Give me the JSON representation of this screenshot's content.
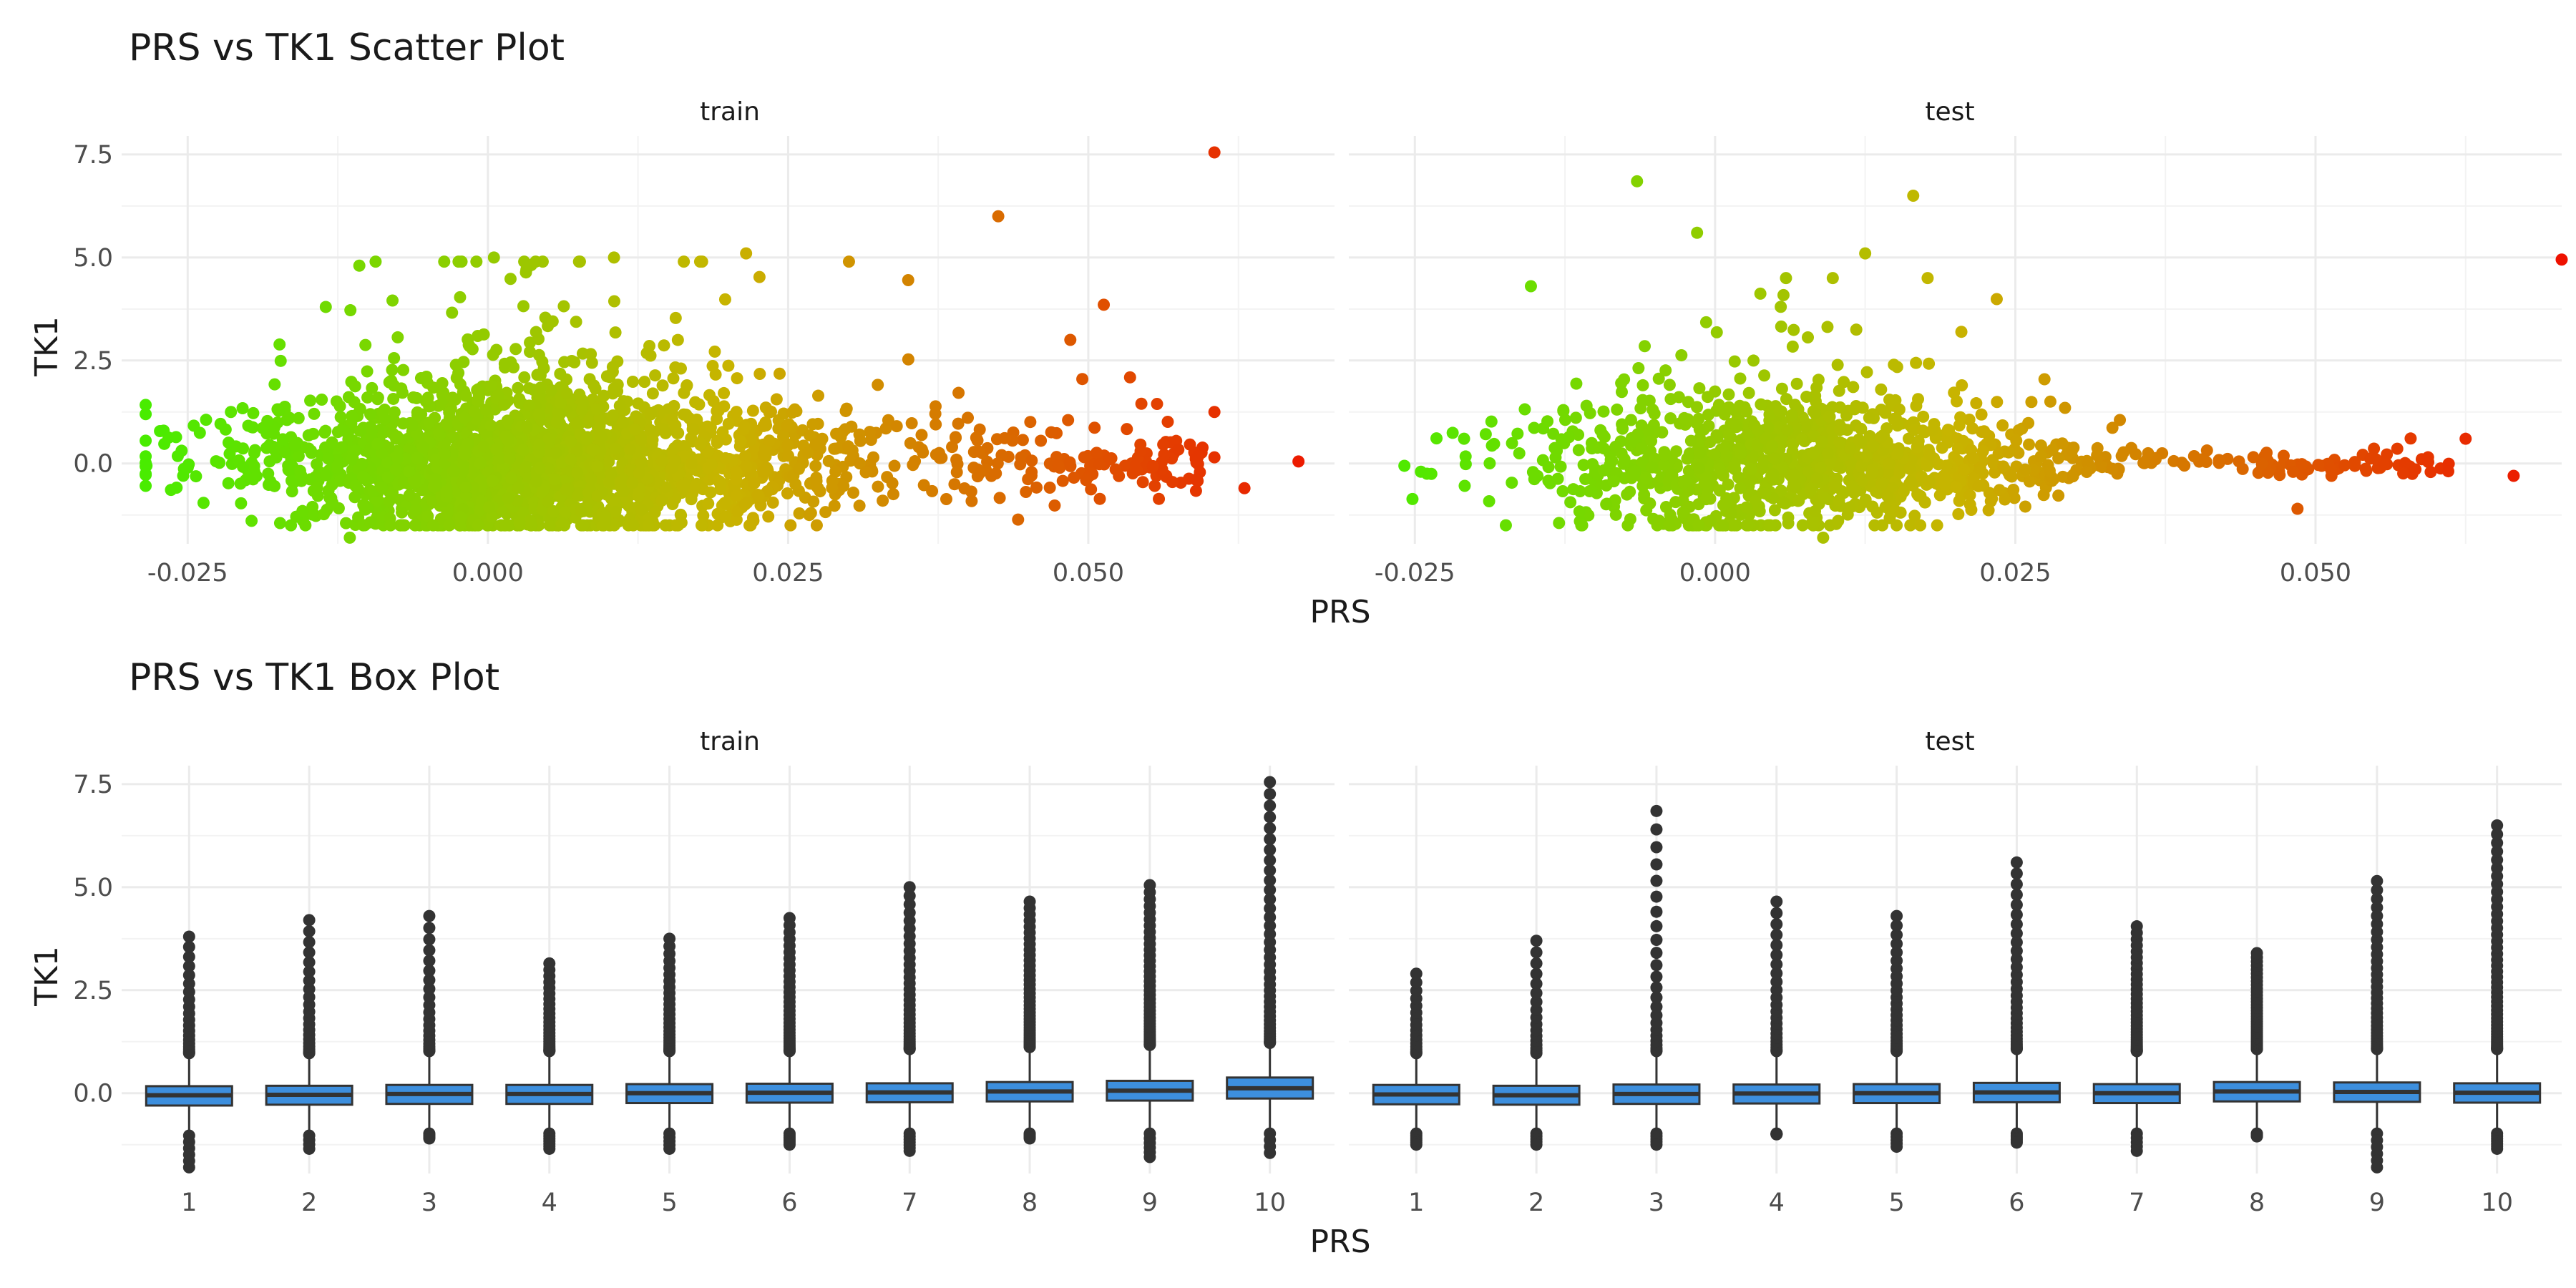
{
  "chart_data": [
    {
      "type": "scatter",
      "title": "PRS vs TK1 Scatter Plot",
      "xlabel": "PRS",
      "ylabel": "TK1",
      "facets": [
        "train",
        "test"
      ],
      "x_ticks": [
        "-0.025",
        "0.000",
        "0.025",
        "0.050"
      ],
      "x_tick_values": [
        -0.025,
        0.0,
        0.025,
        0.05
      ],
      "y_ticks": [
        "0.0",
        "2.5",
        "5.0",
        "7.5"
      ],
      "y_tick_values": [
        0.0,
        2.5,
        5.0,
        7.5
      ],
      "xlim": [
        -0.0305,
        0.0705
      ],
      "ylim": [
        -1.95,
        7.95
      ],
      "grid": true,
      "color_gradient": {
        "low": "#44ee00",
        "mid": "#c8b400",
        "high": "#ee1100",
        "variable": "PRS"
      },
      "series": [
        {
          "name": "train",
          "n_points": 2400,
          "points_sample": [
            {
              "x": -0.0285,
              "y": -0.25
            },
            {
              "x": -0.025,
              "y": -0.1
            },
            {
              "x": -0.0115,
              "y": -1.8
            },
            {
              "x": -0.0135,
              "y": 3.8
            },
            {
              "x": 0.0005,
              "y": 5.0
            },
            {
              "x": 0.0105,
              "y": 5.0
            },
            {
              "x": 0.0215,
              "y": 5.1
            },
            {
              "x": 0.035,
              "y": 4.45
            },
            {
              "x": 0.0425,
              "y": 6.0
            },
            {
              "x": 0.0485,
              "y": 3.0
            },
            {
              "x": 0.0495,
              "y": 2.05
            },
            {
              "x": 0.0605,
              "y": 7.55
            },
            {
              "x": 0.0605,
              "y": 1.25
            },
            {
              "x": 0.0605,
              "y": 0.15
            },
            {
              "x": 0.0675,
              "y": 0.05
            },
            {
              "x": 0.063,
              "y": -0.6
            },
            {
              "x": 0.057,
              "y": -0.45
            }
          ]
        },
        {
          "name": "test",
          "n_points": 1200,
          "points_sample": [
            {
              "x": -0.0245,
              "y": -0.2
            },
            {
              "x": -0.0065,
              "y": 6.85
            },
            {
              "x": -0.0015,
              "y": 5.6
            },
            {
              "x": 0.009,
              "y": -1.8
            },
            {
              "x": 0.0125,
              "y": 5.1
            },
            {
              "x": 0.0165,
              "y": 6.5
            },
            {
              "x": 0.0485,
              "y": -1.1
            },
            {
              "x": 0.0625,
              "y": 0.6
            },
            {
              "x": 0.0665,
              "y": -0.3
            },
            {
              "x": 0.0705,
              "y": 4.95
            }
          ]
        }
      ]
    },
    {
      "type": "box",
      "title": "PRS vs TK1 Box Plot",
      "xlabel": "PRS",
      "ylabel": "TK1",
      "facets": [
        "train",
        "test"
      ],
      "categories": [
        "1",
        "2",
        "3",
        "4",
        "5",
        "6",
        "7",
        "8",
        "9",
        "10"
      ],
      "y_ticks": [
        "0.0",
        "2.5",
        "5.0",
        "7.5"
      ],
      "y_tick_values": [
        0.0,
        2.5,
        5.0,
        7.5
      ],
      "ylim": [
        -1.95,
        7.95
      ],
      "box_fill": "#3d8fde",
      "grid": true,
      "series": [
        {
          "name": "train",
          "boxes": [
            {
              "q1": -0.3,
              "median": -0.05,
              "q3": 0.17,
              "wmin": -0.95,
              "wmax": 0.85,
              "hi_max": 3.8,
              "lo_min": -1.8
            },
            {
              "q1": -0.28,
              "median": -0.04,
              "q3": 0.18,
              "wmin": -0.95,
              "wmax": 0.85,
              "hi_max": 4.2,
              "lo_min": -1.35
            },
            {
              "q1": -0.26,
              "median": -0.02,
              "q3": 0.2,
              "wmin": -0.9,
              "wmax": 0.9,
              "hi_max": 4.3,
              "lo_min": -1.1
            },
            {
              "q1": -0.26,
              "median": -0.02,
              "q3": 0.2,
              "wmin": -0.9,
              "wmax": 0.9,
              "hi_max": 3.15,
              "lo_min": -1.35
            },
            {
              "q1": -0.24,
              "median": 0.0,
              "q3": 0.22,
              "wmin": -0.9,
              "wmax": 0.9,
              "hi_max": 3.75,
              "lo_min": -1.35
            },
            {
              "q1": -0.23,
              "median": 0.01,
              "q3": 0.23,
              "wmin": -0.9,
              "wmax": 0.9,
              "hi_max": 4.25,
              "lo_min": -1.25
            },
            {
              "q1": -0.22,
              "median": 0.02,
              "q3": 0.24,
              "wmin": -0.9,
              "wmax": 0.95,
              "hi_max": 5.0,
              "lo_min": -1.4
            },
            {
              "q1": -0.2,
              "median": 0.04,
              "q3": 0.27,
              "wmin": -0.9,
              "wmax": 1.0,
              "hi_max": 4.65,
              "lo_min": -1.1
            },
            {
              "q1": -0.18,
              "median": 0.06,
              "q3": 0.3,
              "wmin": -0.9,
              "wmax": 1.05,
              "hi_max": 5.05,
              "lo_min": -1.55
            },
            {
              "q1": -0.13,
              "median": 0.12,
              "q3": 0.38,
              "wmin": -0.9,
              "wmax": 1.1,
              "hi_max": 7.55,
              "lo_min": -1.45
            }
          ]
        },
        {
          "name": "test",
          "boxes": [
            {
              "q1": -0.27,
              "median": -0.03,
              "q3": 0.2,
              "wmin": -0.9,
              "wmax": 0.85,
              "hi_max": 2.9,
              "lo_min": -1.25
            },
            {
              "q1": -0.28,
              "median": -0.05,
              "q3": 0.18,
              "wmin": -0.9,
              "wmax": 0.85,
              "hi_max": 3.7,
              "lo_min": -1.25
            },
            {
              "q1": -0.26,
              "median": -0.02,
              "q3": 0.21,
              "wmin": -0.9,
              "wmax": 0.9,
              "hi_max": 6.85,
              "lo_min": -1.25
            },
            {
              "q1": -0.25,
              "median": -0.01,
              "q3": 0.21,
              "wmin": -0.9,
              "wmax": 0.9,
              "hi_max": 4.65,
              "lo_min": -1.0
            },
            {
              "q1": -0.24,
              "median": 0.0,
              "q3": 0.22,
              "wmin": -0.9,
              "wmax": 0.9,
              "hi_max": 4.3,
              "lo_min": -1.3
            },
            {
              "q1": -0.22,
              "median": 0.02,
              "q3": 0.25,
              "wmin": -0.9,
              "wmax": 0.95,
              "hi_max": 5.6,
              "lo_min": -1.2
            },
            {
              "q1": -0.24,
              "median": 0.0,
              "q3": 0.22,
              "wmin": -0.9,
              "wmax": 0.9,
              "hi_max": 4.05,
              "lo_min": -1.4
            },
            {
              "q1": -0.2,
              "median": 0.04,
              "q3": 0.27,
              "wmin": -0.9,
              "wmax": 0.95,
              "hi_max": 3.4,
              "lo_min": -1.05
            },
            {
              "q1": -0.21,
              "median": 0.03,
              "q3": 0.26,
              "wmin": -0.9,
              "wmax": 0.95,
              "hi_max": 5.15,
              "lo_min": -1.8
            },
            {
              "q1": -0.23,
              "median": 0.01,
              "q3": 0.24,
              "wmin": -0.9,
              "wmax": 0.95,
              "hi_max": 6.5,
              "lo_min": -1.35
            }
          ]
        }
      ]
    }
  ]
}
